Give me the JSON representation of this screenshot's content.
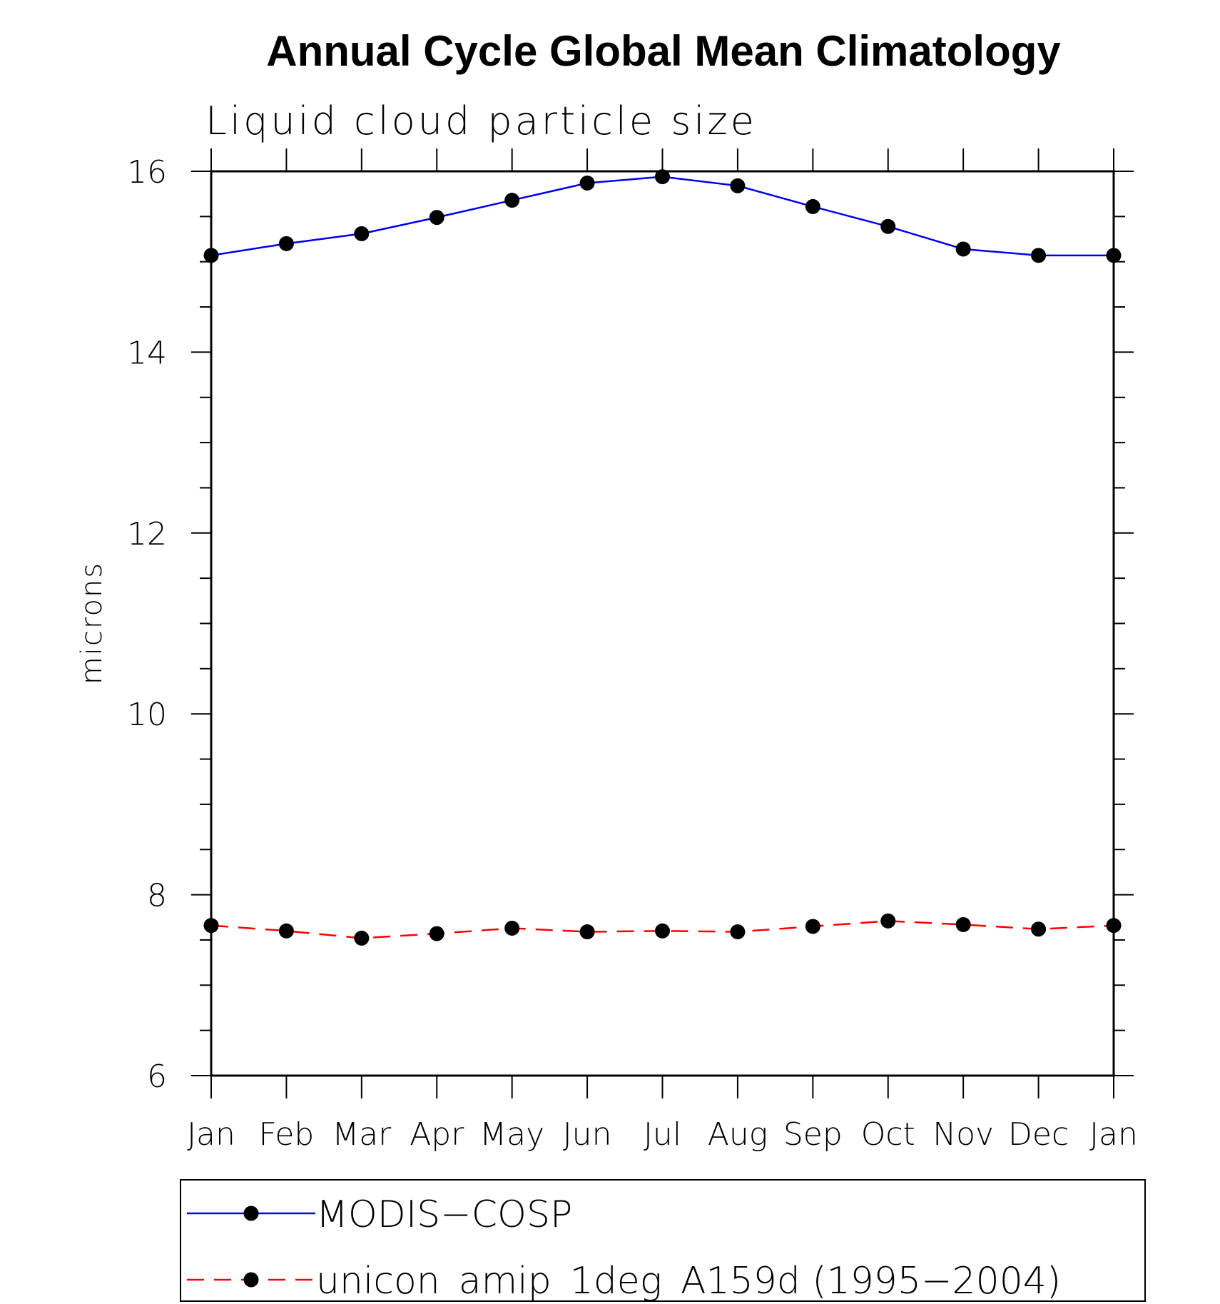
{
  "chart_data": {
    "type": "line",
    "title": "Annual Cycle Global Mean Climatology",
    "subtitle": "Liquid cloud particle size",
    "xlabel": "",
    "ylabel": "microns",
    "categories": [
      "Jan",
      "Feb",
      "Mar",
      "Apr",
      "May",
      "Jun",
      "Jul",
      "Aug",
      "Sep",
      "Oct",
      "Nov",
      "Dec",
      "Jan"
    ],
    "ylim": [
      6,
      16
    ],
    "yticks": [
      6,
      8,
      10,
      12,
      14,
      16
    ],
    "grid": false,
    "legend_position": "bottom",
    "series": [
      {
        "name": "MODIS−COSP",
        "color": "#0000ee",
        "line_style": "solid",
        "marker": "filled-circle",
        "values": [
          15.07,
          15.2,
          15.31,
          15.49,
          15.68,
          15.87,
          15.94,
          15.84,
          15.61,
          15.39,
          15.14,
          15.07,
          15.07
        ]
      },
      {
        "name": "unicon_amip_1deg_A159d (1995−2004)",
        "color": "#ff0000",
        "line_style": "dashed",
        "marker": "filled-circle",
        "values": [
          7.66,
          7.6,
          7.52,
          7.57,
          7.63,
          7.59,
          7.6,
          7.59,
          7.65,
          7.71,
          7.67,
          7.62,
          7.66
        ]
      }
    ]
  }
}
